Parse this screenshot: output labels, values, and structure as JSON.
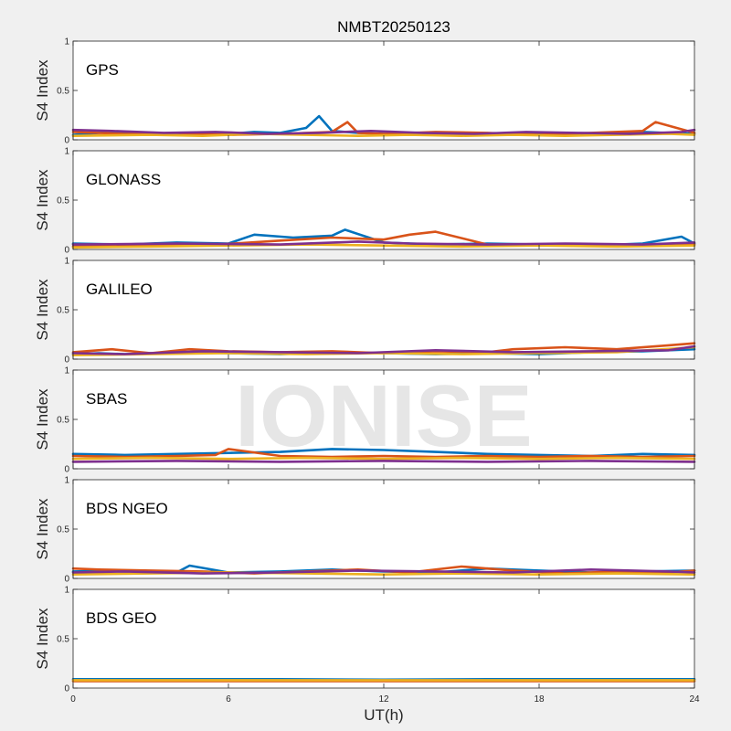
{
  "chart_data": {
    "type": "line",
    "title": "NMBT20250123",
    "xlabel": "UT(h)",
    "ylabel": "S4 Index",
    "xlim": [
      0,
      24
    ],
    "ylim": [
      0,
      1
    ],
    "x_ticks": [
      "0",
      "6",
      "12",
      "18",
      "24"
    ],
    "y_ticks": [
      "0",
      "0.5",
      "1"
    ],
    "watermark": "IONISE",
    "colors": [
      "#0072BD",
      "#D95319",
      "#EDB120",
      "#7E2F8E",
      "#77AC30",
      "#4DBEEE",
      "#A2142F"
    ],
    "panels": [
      {
        "label": "GPS",
        "series": [
          {
            "x": [
              0,
              1,
              2,
              3,
              4,
              5,
              6,
              7,
              8,
              9,
              9.5,
              10,
              11,
              12,
              14,
              16,
              18,
              20,
              22,
              24
            ],
            "y": [
              0.05,
              0.07,
              0.08,
              0.06,
              0.07,
              0.05,
              0.06,
              0.08,
              0.07,
              0.12,
              0.24,
              0.09,
              0.07,
              0.06,
              0.07,
              0.06,
              0.06,
              0.05,
              0.08,
              0.06
            ]
          },
          {
            "x": [
              0,
              2,
              4,
              6,
              8,
              10,
              10.6,
              11,
              12,
              14,
              16,
              18,
              20,
              22,
              22.5,
              24
            ],
            "y": [
              0.08,
              0.06,
              0.07,
              0.05,
              0.06,
              0.08,
              0.18,
              0.07,
              0.06,
              0.08,
              0.07,
              0.05,
              0.07,
              0.09,
              0.18,
              0.07
            ]
          },
          {
            "x": [
              0,
              3,
              5,
              7,
              9,
              11,
              13,
              15,
              17,
              19,
              21,
              23,
              24
            ],
            "y": [
              0.04,
              0.05,
              0.04,
              0.06,
              0.05,
              0.04,
              0.05,
              0.04,
              0.05,
              0.04,
              0.05,
              0.06,
              0.05
            ]
          },
          {
            "x": [
              0,
              1.5,
              3.5,
              5.5,
              7.5,
              9.5,
              11.5,
              13.5,
              15.5,
              17.5,
              19.5,
              21.5,
              23.5,
              24
            ],
            "y": [
              0.1,
              0.09,
              0.07,
              0.08,
              0.06,
              0.07,
              0.09,
              0.07,
              0.06,
              0.08,
              0.07,
              0.06,
              0.08,
              0.1
            ]
          }
        ]
      },
      {
        "label": "GLONASS",
        "series": [
          {
            "x": [
              0,
              2,
              4,
              6,
              7,
              8.5,
              10,
              10.5,
              12,
              14,
              16,
              18,
              20,
              22,
              23.5,
              24
            ],
            "y": [
              0.06,
              0.05,
              0.07,
              0.06,
              0.15,
              0.12,
              0.14,
              0.2,
              0.07,
              0.05,
              0.06,
              0.05,
              0.04,
              0.06,
              0.13,
              0.06
            ]
          },
          {
            "x": [
              0,
              2,
              3,
              5,
              8,
              10,
              12,
              13,
              14,
              16,
              18,
              20,
              22,
              24
            ],
            "y": [
              0.03,
              0.04,
              0.05,
              0.04,
              0.09,
              0.12,
              0.1,
              0.15,
              0.18,
              0.05,
              0.04,
              0.05,
              0.04,
              0.05
            ]
          },
          {
            "x": [
              0,
              3,
              6,
              9,
              12,
              15,
              18,
              21,
              24
            ],
            "y": [
              0.02,
              0.03,
              0.04,
              0.05,
              0.04,
              0.03,
              0.04,
              0.03,
              0.04
            ]
          },
          {
            "x": [
              0,
              4,
              8,
              11,
              13,
              16,
              19,
              22,
              24
            ],
            "y": [
              0.05,
              0.06,
              0.05,
              0.08,
              0.06,
              0.05,
              0.06,
              0.05,
              0.07
            ]
          }
        ]
      },
      {
        "label": "GALILEO",
        "series": [
          {
            "x": [
              0,
              1,
              2,
              4,
              6,
              8,
              10,
              12,
              14,
              16,
              18,
              20,
              22,
              24
            ],
            "y": [
              0.05,
              0.06,
              0.05,
              0.07,
              0.06,
              0.05,
              0.07,
              0.06,
              0.05,
              0.06,
              0.05,
              0.07,
              0.08,
              0.1
            ]
          },
          {
            "x": [
              0,
              1.5,
              3,
              4.5,
              6,
              8,
              10,
              12,
              14,
              16,
              17,
              19,
              21,
              23,
              24
            ],
            "y": [
              0.07,
              0.1,
              0.06,
              0.1,
              0.08,
              0.07,
              0.08,
              0.06,
              0.08,
              0.07,
              0.1,
              0.12,
              0.1,
              0.14,
              0.16
            ]
          },
          {
            "x": [
              0,
              3,
              6,
              9,
              12,
              15,
              18,
              21,
              24
            ],
            "y": [
              0.04,
              0.05,
              0.06,
              0.05,
              0.06,
              0.05,
              0.06,
              0.07,
              0.12
            ]
          },
          {
            "x": [
              0,
              2,
              5,
              8,
              11,
              14,
              17,
              20,
              23,
              24
            ],
            "y": [
              0.06,
              0.05,
              0.08,
              0.07,
              0.06,
              0.09,
              0.07,
              0.08,
              0.09,
              0.13
            ]
          }
        ]
      },
      {
        "label": "SBAS",
        "series": [
          {
            "x": [
              0,
              2,
              4,
              6,
              8,
              10,
              12,
              14,
              16,
              18,
              20,
              22,
              24
            ],
            "y": [
              0.15,
              0.14,
              0.15,
              0.16,
              0.17,
              0.2,
              0.19,
              0.17,
              0.15,
              0.14,
              0.13,
              0.15,
              0.14
            ]
          },
          {
            "x": [
              0,
              2,
              4,
              5.5,
              6,
              8,
              10,
              12,
              14,
              16,
              18,
              20,
              22,
              24
            ],
            "y": [
              0.13,
              0.12,
              0.13,
              0.14,
              0.2,
              0.13,
              0.12,
              0.13,
              0.12,
              0.13,
              0.12,
              0.13,
              0.12,
              0.13
            ]
          },
          {
            "x": [
              0,
              3,
              6,
              9,
              12,
              15,
              18,
              21,
              24
            ],
            "y": [
              0.1,
              0.11,
              0.1,
              0.11,
              0.1,
              0.11,
              0.1,
              0.11,
              0.1
            ]
          },
          {
            "x": [
              0,
              4,
              8,
              12,
              16,
              20,
              24
            ],
            "y": [
              0.07,
              0.08,
              0.07,
              0.08,
              0.07,
              0.08,
              0.07
            ]
          }
        ]
      },
      {
        "label": "BDS NGEO",
        "series": [
          {
            "x": [
              0,
              2,
              4,
              4.5,
              6,
              8,
              10,
              12,
              14,
              16,
              18,
              20,
              22,
              24
            ],
            "y": [
              0.07,
              0.08,
              0.06,
              0.13,
              0.06,
              0.07,
              0.09,
              0.07,
              0.06,
              0.1,
              0.08,
              0.06,
              0.07,
              0.08
            ]
          },
          {
            "x": [
              0,
              1,
              3,
              5,
              7,
              9,
              11,
              13,
              15,
              17,
              19,
              21,
              23,
              24
            ],
            "y": [
              0.1,
              0.09,
              0.08,
              0.07,
              0.05,
              0.07,
              0.09,
              0.06,
              0.12,
              0.08,
              0.05,
              0.07,
              0.06,
              0.08
            ]
          },
          {
            "x": [
              0,
              3,
              6,
              9,
              12,
              15,
              18,
              21,
              24
            ],
            "y": [
              0.04,
              0.05,
              0.06,
              0.05,
              0.04,
              0.05,
              0.04,
              0.05,
              0.04
            ]
          },
          {
            "x": [
              0,
              2,
              5,
              8,
              11,
              14,
              17,
              20,
              23,
              24
            ],
            "y": [
              0.06,
              0.07,
              0.05,
              0.06,
              0.08,
              0.07,
              0.06,
              0.09,
              0.07,
              0.06
            ]
          }
        ]
      },
      {
        "label": "BDS GEO",
        "series": [
          {
            "x": [
              0,
              4,
              8,
              12,
              16,
              20,
              24
            ],
            "y": [
              0.09,
              0.09,
              0.09,
              0.085,
              0.09,
              0.09,
              0.09
            ]
          },
          {
            "x": [
              0,
              4,
              8,
              12,
              16,
              20,
              24
            ],
            "y": [
              0.07,
              0.07,
              0.07,
              0.07,
              0.07,
              0.07,
              0.07
            ]
          },
          {
            "x": [
              0,
              4,
              8,
              12,
              16,
              20,
              24
            ],
            "y": [
              0.08,
              0.08,
              0.08,
              0.08,
              0.08,
              0.08,
              0.08
            ]
          }
        ]
      }
    ]
  }
}
